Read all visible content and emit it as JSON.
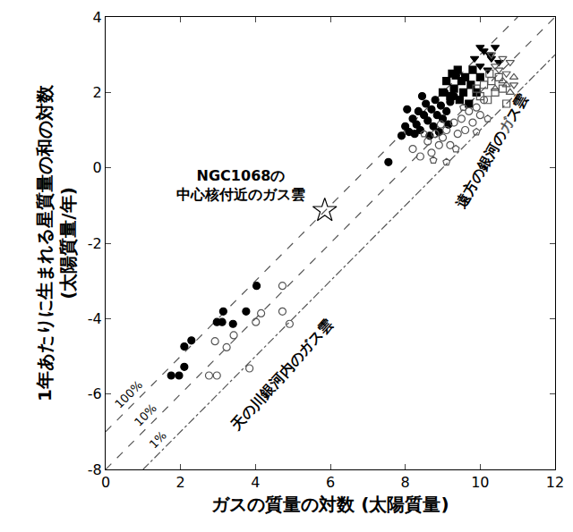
{
  "chart_data": {
    "type": "scatter",
    "x_label": "ガスの質量の対数 (太陽質量)",
    "y_label": "1年あたりに生まれる星質量の和の対数\n(太陽質量/年)",
    "xlim": [
      0,
      12
    ],
    "ylim": [
      -8,
      4
    ],
    "xticks": [
      0,
      2,
      4,
      6,
      8,
      10,
      12
    ],
    "yticks": [
      -8,
      -6,
      -4,
      -2,
      0,
      2,
      4
    ],
    "grid": false,
    "annotations": [
      {
        "text": "NGC1068の\n中心核付近のガス雲"
      },
      {
        "text": "天の川銀河内のガス雲"
      },
      {
        "text": "遠方の銀河のガス雲"
      }
    ],
    "series": [
      {
        "type": "line",
        "name": "100%",
        "line_style": "dash",
        "color": "#555555",
        "x": [
          0,
          11
        ],
        "y": [
          -7,
          4
        ]
      },
      {
        "type": "line",
        "name": "10%",
        "line_style": "dash",
        "color": "#555555",
        "x": [
          0,
          12
        ],
        "y": [
          -8,
          4
        ]
      },
      {
        "type": "line",
        "name": "1%",
        "line_style": "dashdot",
        "color": "#555555",
        "x": [
          1,
          12
        ],
        "y": [
          -8,
          3
        ]
      },
      {
        "type": "scatter",
        "marker": "circle",
        "color": "#000000",
        "x": [
          1.75,
          1.96,
          2.1,
          2.1,
          2.29,
          2.97,
          3.11,
          3.14,
          3.4,
          3.75,
          4.03
        ],
        "y": [
          -5.51,
          -5.51,
          -5.28,
          -4.74,
          -4.58,
          -4.09,
          -4.09,
          -3.81,
          -4.14,
          -3.81,
          -3.13
        ]
      },
      {
        "type": "scatter",
        "marker": "circle-open",
        "color": "#555555",
        "x": [
          2.76,
          2.97,
          2.92,
          3.23,
          3.42,
          4.01,
          4.15,
          3.84,
          4.72,
          4.72,
          4.91
        ],
        "y": [
          -5.51,
          -5.51,
          -4.6,
          -4.76,
          -4.44,
          -4.09,
          -3.86,
          -5.32,
          -3.13,
          -3.81,
          -4.14
        ]
      },
      {
        "type": "scatter",
        "marker": "star-open",
        "color": "#000000",
        "x": [
          5.85
        ],
        "y": [
          -1.13
        ]
      },
      {
        "type": "scatter",
        "marker": "circle",
        "color": "#000000",
        "x": [
          7.55,
          7.9,
          8.0,
          8.1,
          8.2,
          8.3,
          8.35,
          8.4,
          8.5,
          8.55,
          8.6,
          8.7,
          8.75,
          8.8,
          8.85,
          8.9,
          8.95,
          9.0,
          9.05,
          9.1,
          9.2,
          9.3,
          8.25,
          8.65,
          9.15,
          8.45,
          8.05
        ],
        "y": [
          0.15,
          0.85,
          1.1,
          0.95,
          1.3,
          1.15,
          1.5,
          1.0,
          1.4,
          1.7,
          1.25,
          1.55,
          1.1,
          1.8,
          1.4,
          0.95,
          1.65,
          1.3,
          2.0,
          1.5,
          1.75,
          1.9,
          0.9,
          0.85,
          1.15,
          1.9,
          1.55
        ]
      },
      {
        "type": "scatter",
        "marker": "square",
        "color": "#000000",
        "x": [
          9.0,
          9.1,
          9.2,
          9.25,
          9.3,
          9.4,
          9.45,
          9.5,
          9.55,
          9.6,
          9.7,
          9.75,
          9.8,
          9.9,
          10.0,
          9.35
        ],
        "y": [
          2.0,
          2.3,
          1.9,
          2.5,
          2.1,
          2.6,
          1.8,
          2.3,
          2.0,
          2.4,
          1.7,
          2.2,
          2.6,
          2.0,
          2.4,
          2.45
        ]
      },
      {
        "type": "scatter",
        "marker": "triangle-down",
        "color": "#000000",
        "x": [
          9.85,
          10.0,
          10.1,
          10.2,
          10.3,
          10.4,
          10.5,
          10.0,
          10.25
        ],
        "y": [
          2.9,
          2.7,
          3.1,
          2.6,
          2.9,
          3.2,
          2.8,
          3.2,
          3.0
        ]
      },
      {
        "type": "scatter",
        "marker": "circle-open",
        "color": "#555555",
        "x": [
          8.2,
          8.4,
          8.6,
          8.7,
          8.8,
          8.9,
          9.0,
          9.1,
          9.2,
          9.3,
          9.4,
          9.5,
          9.6,
          9.7,
          9.8,
          9.9,
          10.0,
          10.1,
          8.95
        ],
        "y": [
          0.5,
          0.3,
          0.7,
          0.4,
          0.9,
          0.6,
          0.8,
          1.0,
          0.6,
          1.2,
          0.9,
          1.3,
          1.0,
          1.5,
          1.2,
          1.6,
          1.4,
          1.8,
          1.15
        ]
      },
      {
        "type": "scatter",
        "marker": "pentagon-open",
        "color": "#555555",
        "x": [
          8.75,
          9.1,
          8.5,
          9.35,
          9.55,
          10.2,
          9.9
        ],
        "y": [
          0.2,
          0.15,
          0.9,
          0.5,
          1.6,
          1.3,
          0.95
        ]
      },
      {
        "type": "scatter",
        "marker": "square-open",
        "color": "#555555",
        "x": [
          9.9,
          10.0,
          10.1,
          10.2,
          10.3,
          10.4,
          10.5,
          10.6,
          10.7,
          10.25
        ],
        "y": [
          2.1,
          1.9,
          2.2,
          1.8,
          2.3,
          2.0,
          2.4,
          2.1,
          1.7,
          2.5
        ]
      },
      {
        "type": "scatter",
        "marker": "triangle-down-open",
        "color": "#555555",
        "x": [
          10.3,
          10.5,
          10.6,
          10.7,
          10.8,
          10.9,
          10.4
        ],
        "y": [
          3.0,
          2.6,
          2.9,
          2.5,
          2.8,
          2.2,
          2.7
        ]
      },
      {
        "type": "scatter",
        "marker": "triangle-up-open",
        "color": "#555555",
        "x": [
          10.4,
          10.6,
          10.8,
          10.9,
          10.7
        ],
        "y": [
          2.1,
          2.3,
          2.0,
          2.4,
          2.2
        ]
      }
    ]
  }
}
